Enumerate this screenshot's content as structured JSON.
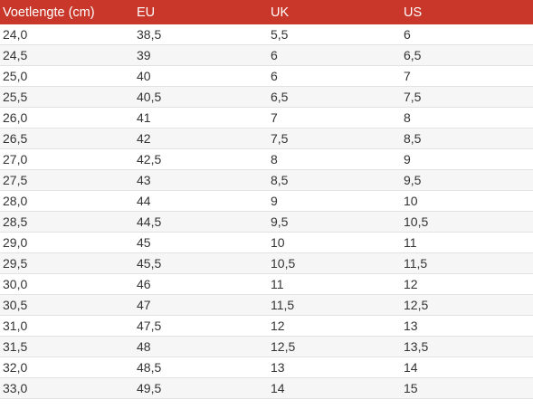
{
  "table": {
    "headers": [
      "Voetlengte (cm)",
      "EU",
      "UK",
      "US"
    ],
    "rows": [
      [
        "24,0",
        "38,5",
        "5,5",
        "6"
      ],
      [
        "24,5",
        "39",
        "6",
        "6,5"
      ],
      [
        "25,0",
        "40",
        "6",
        "7"
      ],
      [
        "25,5",
        "40,5",
        "6,5",
        "7,5"
      ],
      [
        "26,0",
        "41",
        "7",
        "8"
      ],
      [
        "26,5",
        "42",
        "7,5",
        "8,5"
      ],
      [
        "27,0",
        "42,5",
        "8",
        "9"
      ],
      [
        "27,5",
        "43",
        "8,5",
        "9,5"
      ],
      [
        "28,0",
        "44",
        "9",
        "10"
      ],
      [
        "28,5",
        "44,5",
        "9,5",
        "10,5"
      ],
      [
        "29,0",
        "45",
        "10",
        "11"
      ],
      [
        "29,5",
        "45,5",
        "10,5",
        "11,5"
      ],
      [
        "30,0",
        "46",
        "11",
        "12"
      ],
      [
        "30,5",
        "47",
        "11,5",
        "12,5"
      ],
      [
        "31,0",
        "47,5",
        "12",
        "13"
      ],
      [
        "31,5",
        "48",
        "12,5",
        "13,5"
      ],
      [
        "32,0",
        "48,5",
        "13",
        "14"
      ],
      [
        "33,0",
        "49,5",
        "14",
        "15"
      ]
    ]
  },
  "colors": {
    "header_background": "#c8372a",
    "header_text": "#ffffff",
    "row_alt_background": "#f6f6f6",
    "text": "#333333"
  }
}
